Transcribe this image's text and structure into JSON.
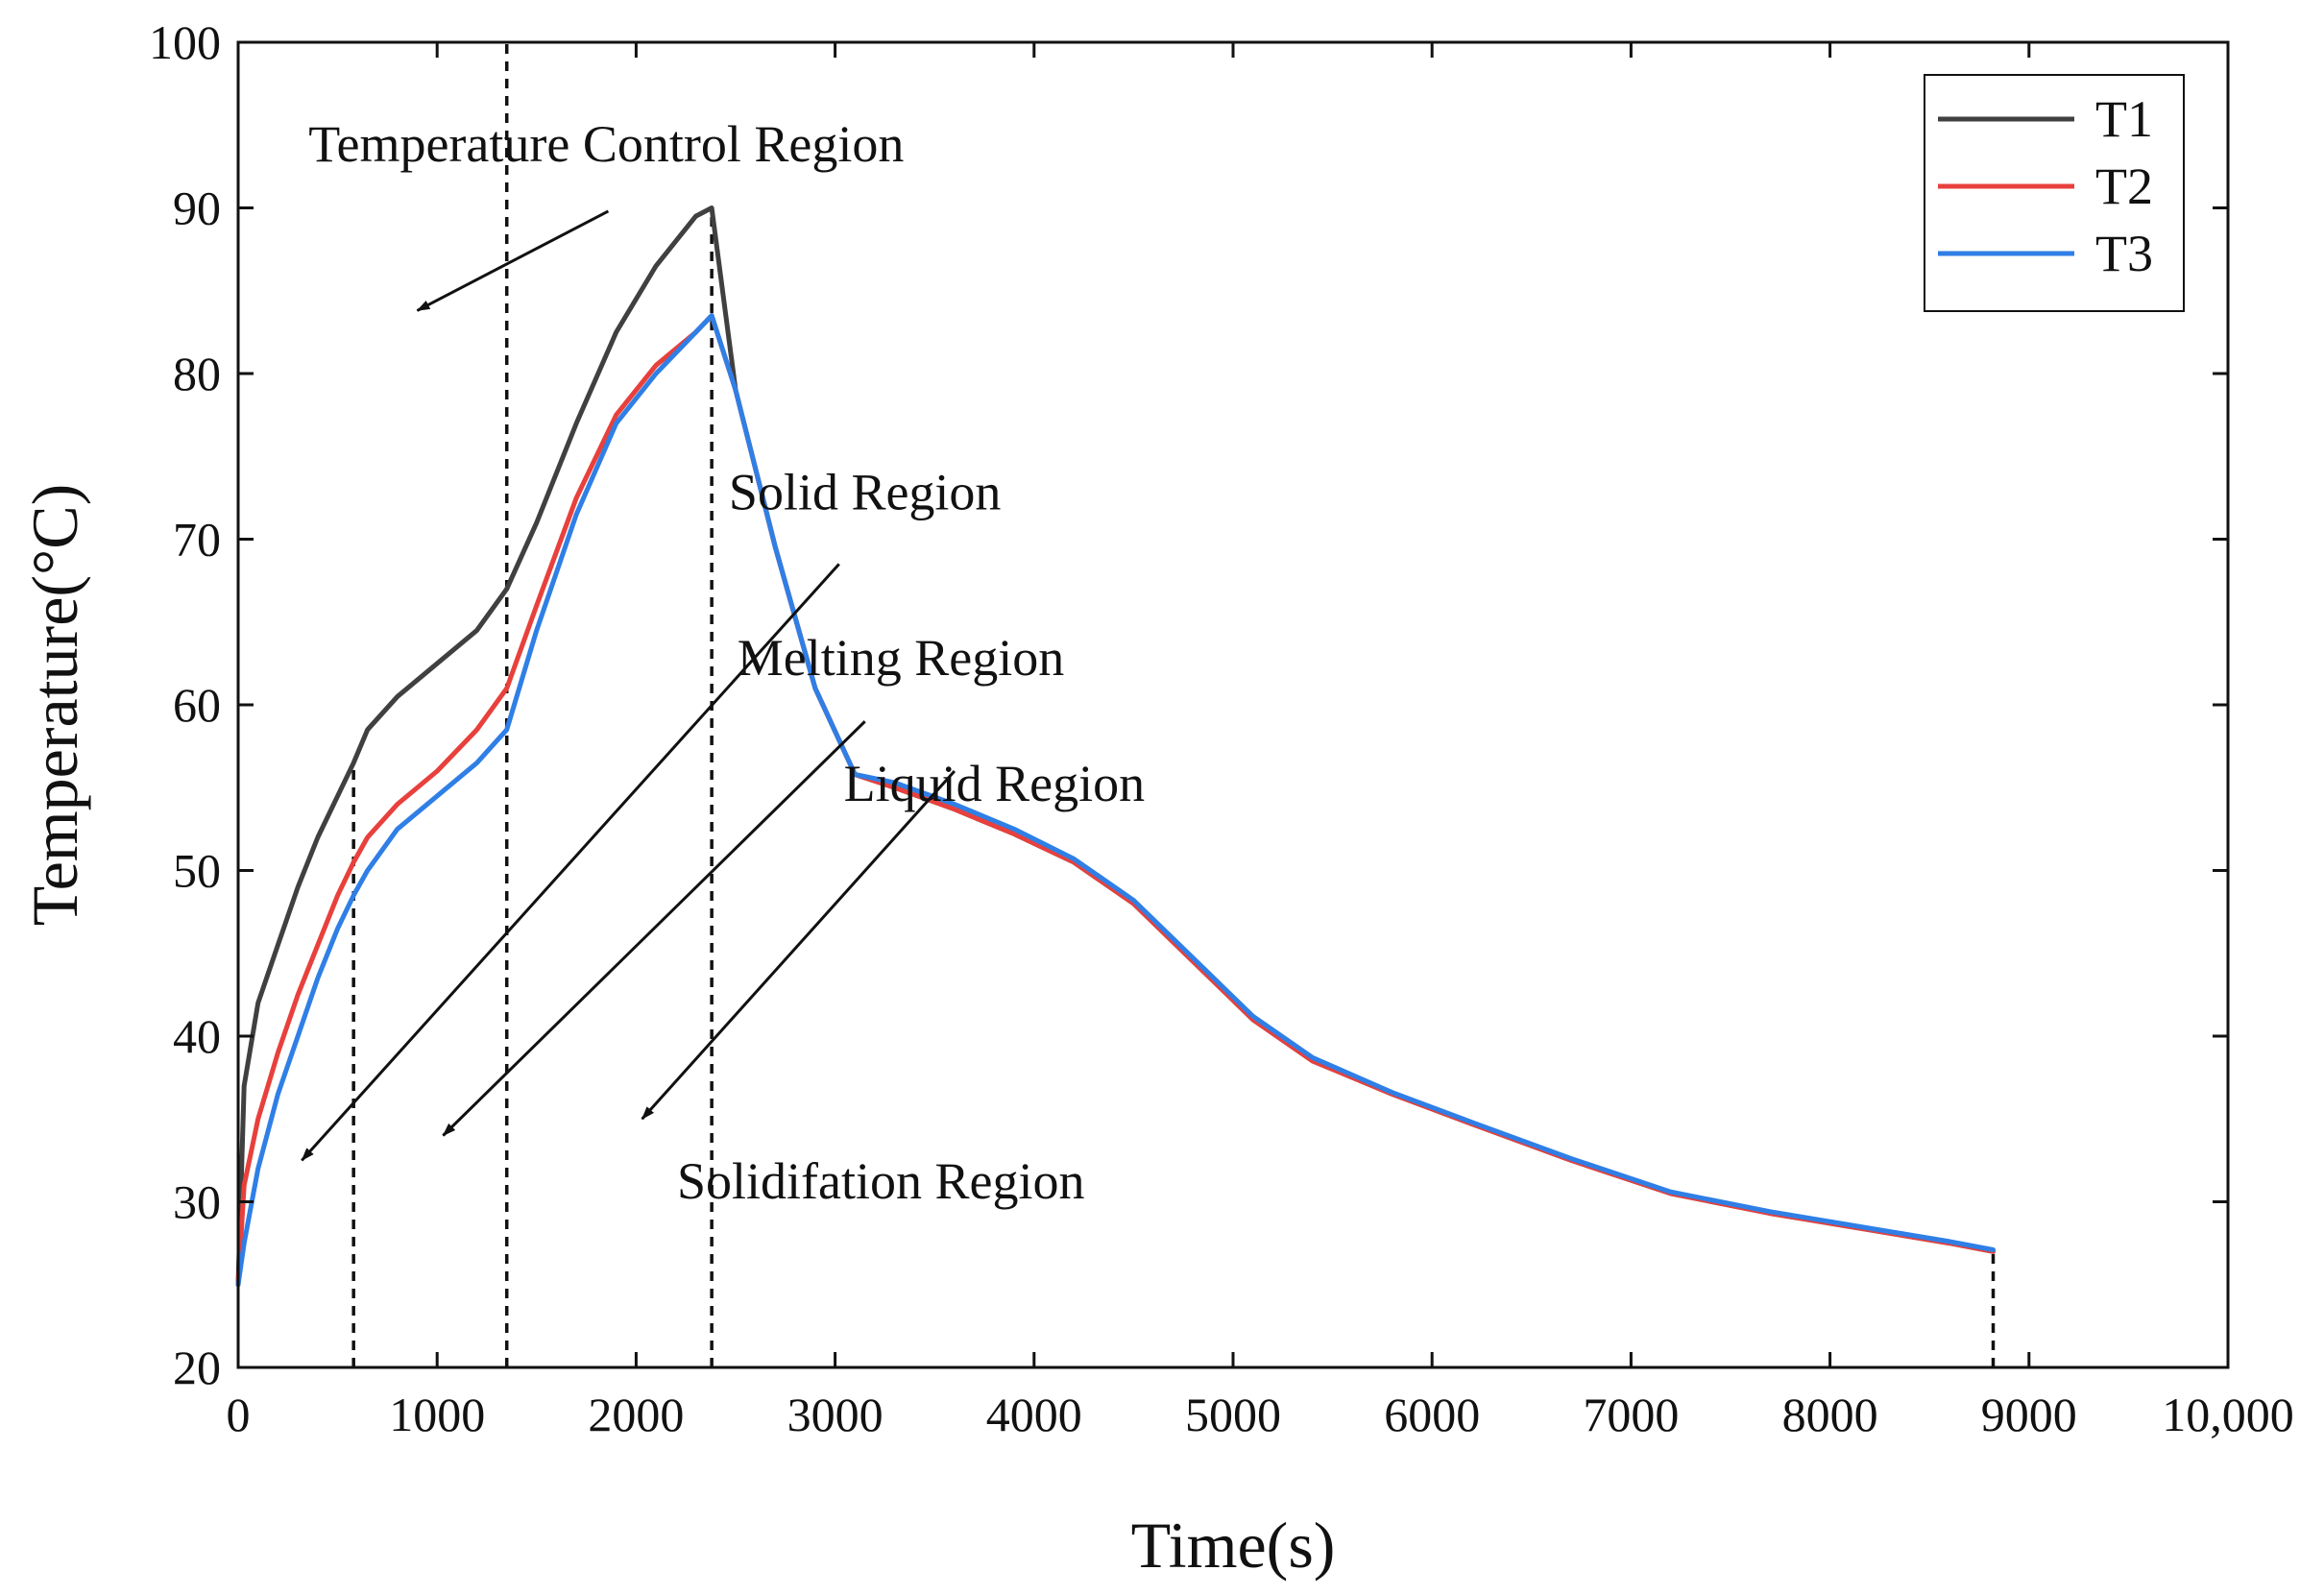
{
  "chart_data": {
    "type": "line",
    "xlabel": "Time(s)",
    "ylabel": "Temperature(°C)",
    "xlim": [
      0,
      10000
    ],
    "ylim": [
      20,
      100
    ],
    "xticks": [
      0,
      1000,
      2000,
      3000,
      4000,
      5000,
      6000,
      7000,
      8000,
      9000,
      10000
    ],
    "xtick_labels": [
      "0",
      "1000",
      "2000",
      "3000",
      "4000",
      "5000",
      "6000",
      "7000",
      "8000",
      "9000",
      "10,000"
    ],
    "yticks": [
      20,
      30,
      40,
      50,
      60,
      70,
      80,
      90,
      100
    ],
    "ytick_labels": [
      "20",
      "30",
      "40",
      "50",
      "60",
      "70",
      "80",
      "90",
      "100"
    ],
    "grid": false,
    "legend_position": "top-right",
    "series": [
      {
        "name": "T1",
        "color": "#404040",
        "x": [
          0,
          30,
          100,
          200,
          300,
          400,
          500,
          580,
          650,
          800,
          1000,
          1200,
          1350,
          1500,
          1700,
          1900,
          2100,
          2300,
          2380,
          2500,
          2700,
          2900,
          3100,
          3300,
          3600,
          3900,
          4200,
          4500,
          4800,
          5100,
          5400,
          5800,
          6200,
          6700,
          7200,
          7700,
          8200,
          8600,
          8820
        ],
        "y": [
          25,
          37,
          42,
          45.5,
          49,
          52,
          54.5,
          56.5,
          58.5,
          60.5,
          62.5,
          64.5,
          67,
          71,
          77,
          82.5,
          86.5,
          89.5,
          90,
          79,
          69.5,
          61,
          55.8,
          55,
          53.7,
          52.2,
          50.5,
          48,
          44.5,
          41,
          38.5,
          36.5,
          34.7,
          32.5,
          30.5,
          29.3,
          28.3,
          27.5,
          27
        ]
      },
      {
        "name": "T2",
        "color": "#e8403c",
        "x": [
          0,
          30,
          100,
          200,
          300,
          400,
          500,
          580,
          650,
          800,
          1000,
          1200,
          1350,
          1500,
          1700,
          1900,
          2100,
          2300,
          2380,
          2500,
          2700,
          2900,
          3100,
          3300,
          3600,
          3900,
          4200,
          4500,
          4800,
          5100,
          5400,
          5800,
          6200,
          6700,
          7200,
          7700,
          8200,
          8600,
          8820
        ],
        "y": [
          25,
          31,
          35,
          39,
          42.5,
          45.5,
          48.5,
          50.5,
          52,
          54,
          56,
          58.5,
          61,
          66,
          72.5,
          77.5,
          80.5,
          82.5,
          83.5,
          79,
          69.5,
          61,
          55.8,
          55,
          53.7,
          52.2,
          50.5,
          48,
          44.5,
          41,
          38.5,
          36.5,
          34.7,
          32.5,
          30.5,
          29.3,
          28.3,
          27.5,
          27
        ]
      },
      {
        "name": "T3",
        "color": "#2f7fe6",
        "x": [
          0,
          30,
          100,
          200,
          300,
          400,
          500,
          580,
          650,
          800,
          1000,
          1200,
          1350,
          1500,
          1700,
          1900,
          2100,
          2300,
          2380,
          2500,
          2700,
          2900,
          3100,
          3300,
          3600,
          3900,
          4200,
          4500,
          4800,
          5100,
          5400,
          5800,
          6200,
          6700,
          7200,
          7700,
          8200,
          8600,
          8820
        ],
        "y": [
          25,
          27.5,
          32,
          36.5,
          40,
          43.5,
          46.5,
          48.5,
          50,
          52.5,
          54.5,
          56.5,
          58.5,
          64.5,
          71.5,
          77,
          80,
          82.5,
          83.5,
          79,
          69.5,
          61,
          55.8,
          55.3,
          54,
          52.5,
          50.7,
          48.2,
          44.7,
          41.2,
          38.7,
          36.6,
          34.8,
          32.6,
          30.6,
          29.4,
          28.4,
          27.6,
          27.1
        ]
      }
    ],
    "vlines": [
      {
        "x": 580,
        "y_top": 56.5
      },
      {
        "x": 1350,
        "y_top": 100
      },
      {
        "x": 2380,
        "y_top": 90
      },
      {
        "x": 8820,
        "y_top": 27
      }
    ],
    "annotations": [
      {
        "text": "Temperature Control Region",
        "x": 1850,
        "y": 92.8
      },
      {
        "text": "Solid Region",
        "x": 3150,
        "y": 71.8
      },
      {
        "text": "Melting Region",
        "x": 3330,
        "y": 61.8
      },
      {
        "text": "Liquid Region",
        "x": 3800,
        "y": 54.2
      },
      {
        "text": "Solidifation Region",
        "x": 3230,
        "y": 30.2
      }
    ],
    "arrows": [
      {
        "from": [
          1860,
          89.8
        ],
        "to": [
          900,
          83.8
        ]
      },
      {
        "from": [
          3020,
          68.5
        ],
        "to": [
          320,
          32.5
        ]
      },
      {
        "from": [
          3150,
          59
        ],
        "to": [
          1030,
          34
        ]
      },
      {
        "from": [
          3600,
          56
        ],
        "to": [
          2030,
          35
        ]
      }
    ]
  }
}
